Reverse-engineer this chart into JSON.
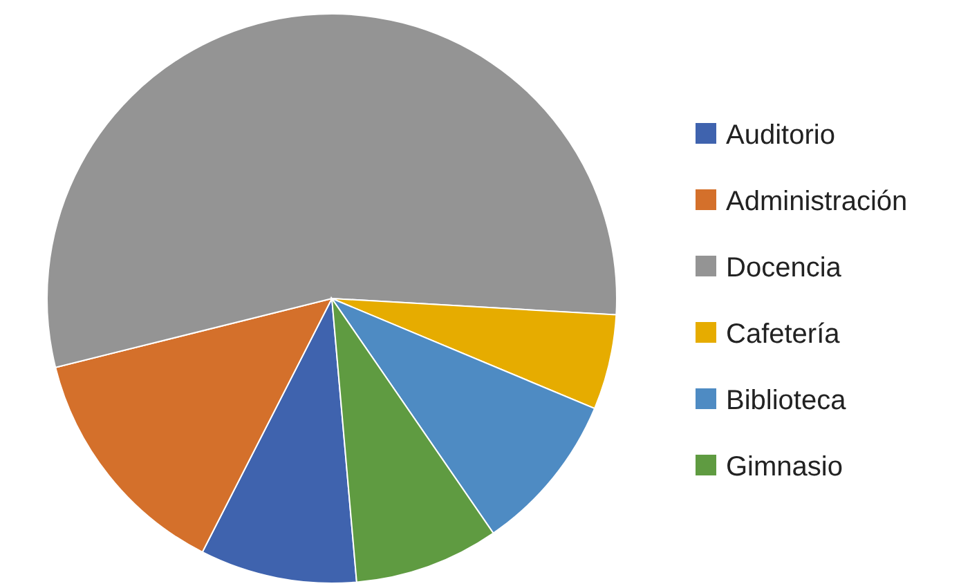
{
  "chart_data": {
    "type": "pie",
    "categories": [
      "Auditorio",
      "Administración",
      "Docencia",
      "Cafetería",
      "Biblioteca",
      "Gimnasio"
    ],
    "values": [
      8.9,
      13.6,
      54.8,
      5.4,
      9.1,
      8.2
    ],
    "colors": [
      "#3f63ae",
      "#d4702b",
      "#949494",
      "#e6ac00",
      "#4e8bc3",
      "#5f9b41"
    ],
    "legend": "right"
  }
}
